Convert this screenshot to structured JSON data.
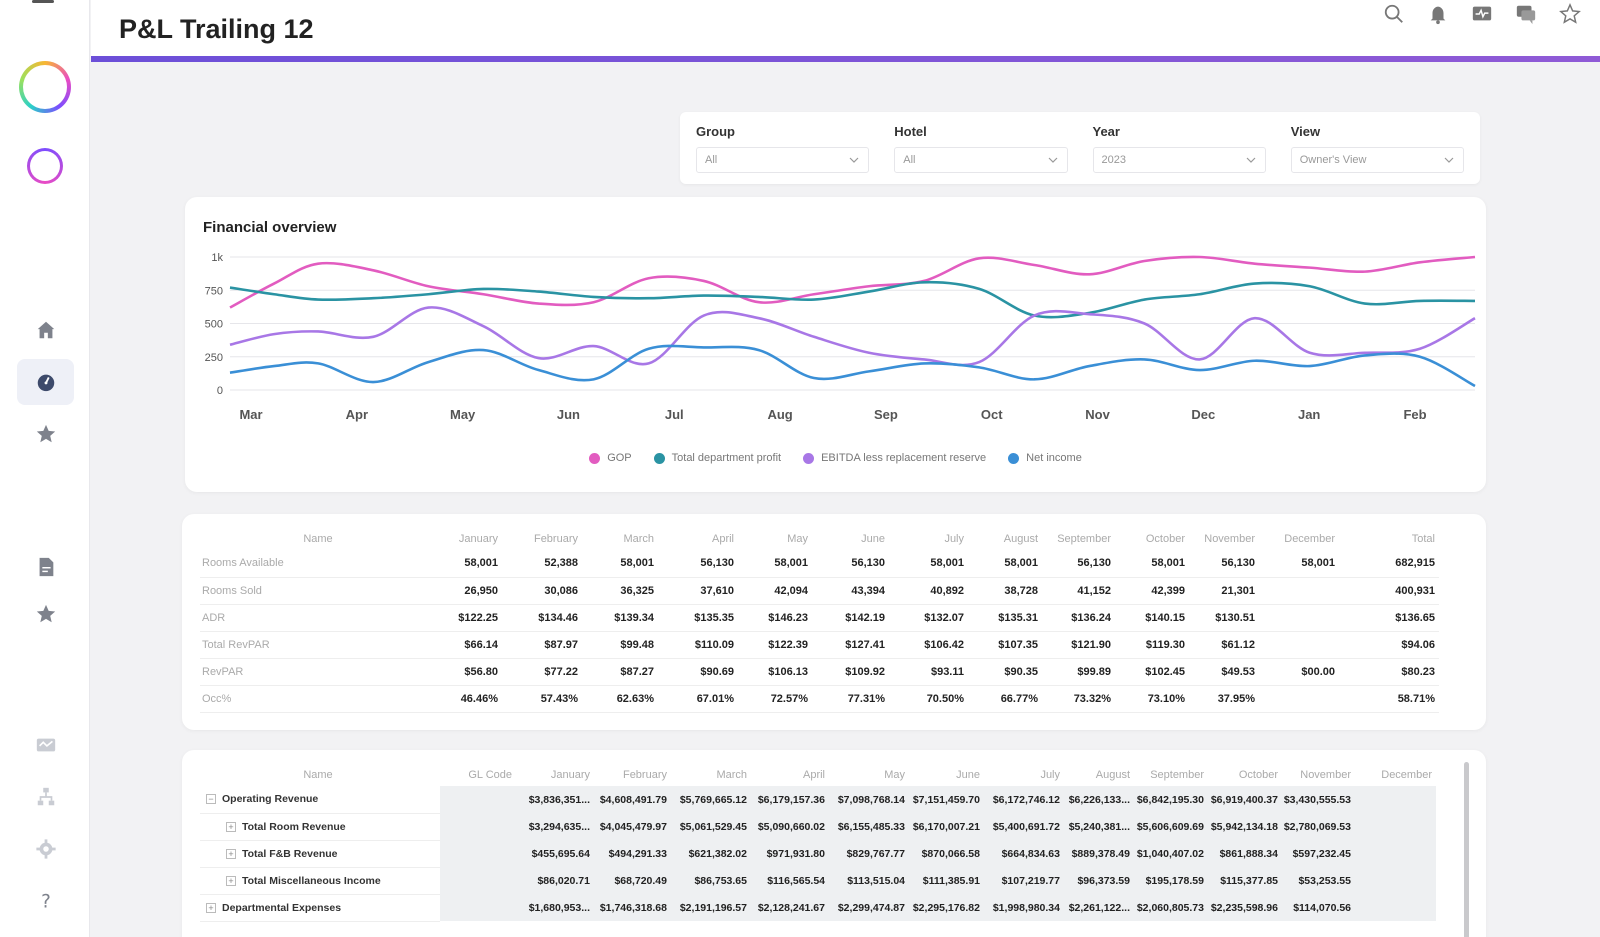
{
  "header": {
    "title": "P&L Trailing 12"
  },
  "sidebar": {
    "items": [
      {
        "icon": "home-icon"
      },
      {
        "icon": "dashboard-gauge-icon"
      },
      {
        "icon": "star-icon"
      },
      {
        "icon": "document-icon"
      },
      {
        "icon": "star-icon"
      },
      {
        "icon": "finance-icon"
      },
      {
        "icon": "org-chart-icon"
      },
      {
        "icon": "settings-gear-icon"
      },
      {
        "icon": "help-icon"
      }
    ]
  },
  "filters": [
    {
      "label": "Group",
      "value": "All"
    },
    {
      "label": "Hotel",
      "value": "All"
    },
    {
      "label": "Year",
      "value": "2023"
    },
    {
      "label": "View",
      "value": "Owner's View"
    }
  ],
  "chart_data": {
    "type": "line",
    "title": "Financial overview",
    "categories": [
      "Mar",
      "Apr",
      "May",
      "Jun",
      "Jul",
      "Aug",
      "Sep",
      "Oct",
      "Nov",
      "Dec",
      "Jan",
      "Feb"
    ],
    "ylim": [
      0,
      1000
    ],
    "yticks": [
      "0",
      "250",
      "500",
      "750",
      "1k"
    ],
    "grid": true,
    "legend": "bottom",
    "series": [
      {
        "name": "GOP",
        "color": "#e25cc0",
        "x": [
          0,
          0.4,
          0.8,
          1.3,
          1.8,
          2.3,
          2.8,
          3.3,
          3.8,
          4.3,
          4.8,
          5.3,
          5.8,
          6.3,
          6.8,
          7.3,
          7.8,
          8.3,
          8.8,
          9.3,
          9.8,
          10.3,
          10.8,
          11.3
        ],
        "values": [
          620,
          800,
          950,
          900,
          780,
          720,
          650,
          660,
          840,
          820,
          660,
          720,
          780,
          820,
          990,
          940,
          870,
          970,
          1000,
          950,
          920,
          890,
          960,
          1000
        ]
      },
      {
        "name": "Total department profit",
        "color": "#2a93a3",
        "x": [
          0,
          0.4,
          0.8,
          1.3,
          1.8,
          2.3,
          2.8,
          3.3,
          3.8,
          4.3,
          4.8,
          5.3,
          5.8,
          6.3,
          6.8,
          7.3,
          7.8,
          8.3,
          8.8,
          9.3,
          9.8,
          10.3,
          10.8,
          11.3
        ],
        "values": [
          770,
          720,
          680,
          690,
          720,
          760,
          740,
          700,
          690,
          710,
          700,
          680,
          740,
          810,
          760,
          560,
          580,
          680,
          720,
          800,
          780,
          650,
          670,
          670
        ]
      },
      {
        "name": "EBITDA less replacement reserve",
        "color": "#a877e6",
        "x": [
          0,
          0.4,
          0.8,
          1.3,
          1.8,
          2.3,
          2.8,
          3.3,
          3.8,
          4.3,
          4.8,
          5.3,
          5.8,
          6.3,
          6.8,
          7.3,
          7.8,
          8.3,
          8.8,
          9.3,
          9.8,
          10.3,
          10.8,
          11.3
        ],
        "values": [
          340,
          420,
          440,
          400,
          620,
          480,
          240,
          330,
          200,
          560,
          540,
          400,
          280,
          230,
          210,
          560,
          570,
          500,
          230,
          540,
          280,
          280,
          310,
          540
        ]
      },
      {
        "name": "Net income",
        "color": "#3a8fd6",
        "x": [
          0,
          0.4,
          0.8,
          1.3,
          1.8,
          2.3,
          2.8,
          3.3,
          3.8,
          4.3,
          4.8,
          5.3,
          5.8,
          6.3,
          6.8,
          7.3,
          7.8,
          8.3,
          8.8,
          9.3,
          9.8,
          10.3,
          10.8,
          11.3
        ],
        "values": [
          130,
          180,
          200,
          60,
          210,
          300,
          150,
          80,
          310,
          320,
          300,
          90,
          140,
          200,
          170,
          80,
          180,
          230,
          150,
          220,
          180,
          260,
          250,
          30
        ]
      }
    ]
  },
  "stats": {
    "columns": [
      "Name",
      "January",
      "February",
      "March",
      "April",
      "May",
      "June",
      "July",
      "August",
      "September",
      "October",
      "November",
      "December",
      "Total"
    ],
    "rows": [
      [
        "Rooms Available",
        "58,001",
        "52,388",
        "58,001",
        "56,130",
        "58,001",
        "56,130",
        "58,001",
        "58,001",
        "56,130",
        "58,001",
        "56,130",
        "58,001",
        "682,915"
      ],
      [
        "Rooms Sold",
        "26,950",
        "30,086",
        "36,325",
        "37,610",
        "42,094",
        "43,394",
        "40,892",
        "38,728",
        "41,152",
        "42,399",
        "21,301",
        "",
        "400,931"
      ],
      [
        "ADR",
        "$122.25",
        "$134.46",
        "$139.34",
        "$135.35",
        "$146.23",
        "$142.19",
        "$132.07",
        "$135.31",
        "$136.24",
        "$140.15",
        "$130.51",
        "",
        "$136.65"
      ],
      [
        "Total RevPAR",
        "$66.14",
        "$87.97",
        "$99.48",
        "$110.09",
        "$122.39",
        "$127.41",
        "$106.42",
        "$107.35",
        "$121.90",
        "$119.30",
        "$61.12",
        "",
        "$94.06"
      ],
      [
        "RevPAR",
        "$56.80",
        "$77.22",
        "$87.27",
        "$90.69",
        "$106.13",
        "$109.92",
        "$93.11",
        "$90.35",
        "$99.89",
        "$102.45",
        "$49.53",
        "$00.00",
        "$80.23"
      ],
      [
        "Occ%",
        "46.46%",
        "57.43%",
        "62.63%",
        "67.01%",
        "72.57%",
        "77.31%",
        "70.50%",
        "66.77%",
        "73.32%",
        "73.10%",
        "37.95%",
        "",
        "58.71%"
      ]
    ]
  },
  "pl": {
    "columns": [
      "Name",
      "GL Code",
      "January",
      "February",
      "March",
      "April",
      "May",
      "June",
      "July",
      "August",
      "September",
      "October",
      "November",
      "December"
    ],
    "rows": [
      {
        "expander": "⊟",
        "indent": 0,
        "name": "Operating Revenue",
        "values": [
          "",
          "$3,836,351...",
          "$4,608,491.79",
          "$5,769,665.12",
          "$6,179,157.36",
          "$7,098,768.14",
          "$7,151,459.70",
          "$6,172,746.12",
          "$6,226,133...",
          "$6,842,195.30",
          "$6,919,400.37",
          "$3,430,555.53",
          ""
        ]
      },
      {
        "expander": "⊞",
        "indent": 1,
        "name": "Total Room Revenue",
        "values": [
          "",
          "$3,294,635...",
          "$4,045,479.97",
          "$5,061,529.45",
          "$5,090,660.02",
          "$6,155,485.33",
          "$6,170,007.21",
          "$5,400,691.72",
          "$5,240,381...",
          "$5,606,609.69",
          "$5,942,134.18",
          "$2,780,069.53",
          ""
        ]
      },
      {
        "expander": "⊞",
        "indent": 1,
        "name": "Total F&B Revenue",
        "values": [
          "",
          "$455,695.64",
          "$494,291.33",
          "$621,382.02",
          "$971,931.80",
          "$829,767.77",
          "$870,066.58",
          "$664,834.63",
          "$889,378.49",
          "$1,040,407.02",
          "$861,888.34",
          "$597,232.45",
          ""
        ]
      },
      {
        "expander": "⊞",
        "indent": 1,
        "name": "Total Miscellaneous Income",
        "values": [
          "",
          "$86,020.71",
          "$68,720.49",
          "$86,753.65",
          "$116,565.54",
          "$113,515.04",
          "$111,385.91",
          "$107,219.77",
          "$96,373.59",
          "$195,178.59",
          "$115,377.85",
          "$53,253.55",
          ""
        ]
      },
      {
        "expander": "⊞",
        "indent": 0,
        "name": "Departmental Expenses",
        "values": [
          "",
          "$1,680,953...",
          "$1,746,318.68",
          "$2,191,196.57",
          "$2,128,241.67",
          "$2,299,474.87",
          "$2,295,176.82",
          "$1,998,980.34",
          "$2,261,122...",
          "$2,060,805.73",
          "$2,235,598.96",
          "$114,070.56",
          ""
        ]
      }
    ]
  }
}
